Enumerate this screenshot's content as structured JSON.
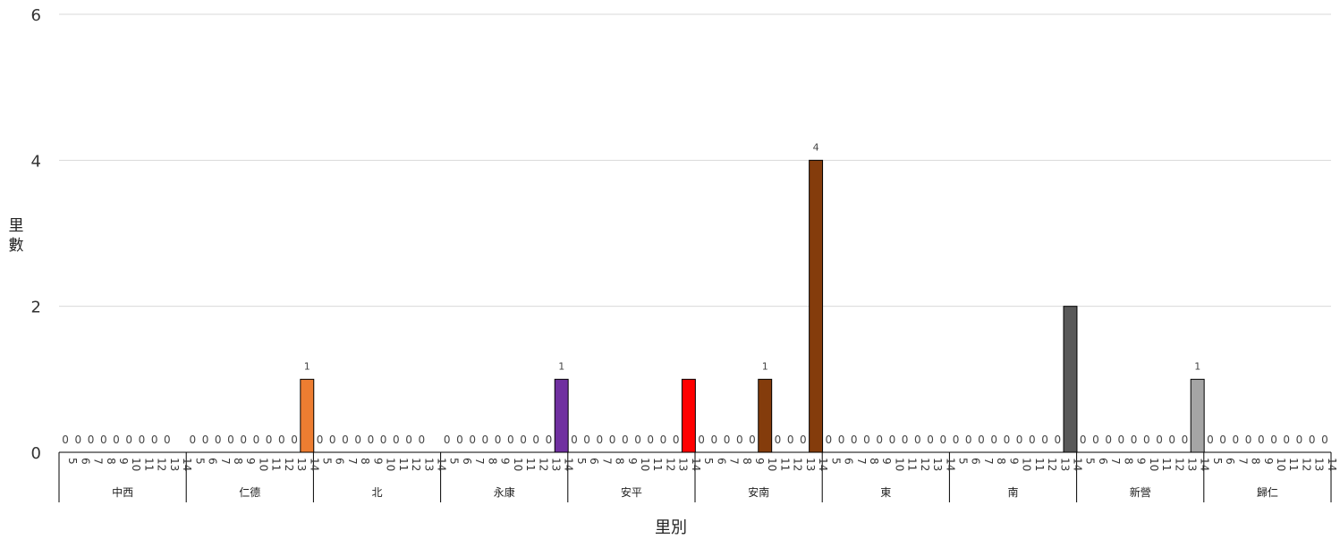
{
  "chart_data": {
    "type": "bar",
    "title": "",
    "xlabel": "里別",
    "ylabel": "里數",
    "ylim": [
      0,
      6
    ],
    "yticks": [
      "0",
      "2",
      "4",
      "6"
    ],
    "grid": true,
    "groups": [
      {
        "name": "中西",
        "categories": [
          "5",
          "6",
          "7",
          "8",
          "9",
          "10",
          "11",
          "12",
          "13",
          "14"
        ],
        "values": [
          0,
          0,
          0,
          0,
          0,
          0,
          0,
          0,
          0,
          null
        ],
        "labels": [
          "0",
          "0",
          "0",
          "0",
          "0",
          "0",
          "0",
          "0",
          "0",
          ""
        ],
        "color": "#ED7D31"
      },
      {
        "name": "仁德",
        "categories": [
          "5",
          "6",
          "7",
          "8",
          "9",
          "10",
          "11",
          "12",
          "13",
          "14"
        ],
        "values": [
          0,
          0,
          0,
          0,
          0,
          0,
          0,
          0,
          0,
          1
        ],
        "labels": [
          "0",
          "0",
          "0",
          "0",
          "0",
          "0",
          "0",
          "0",
          "0",
          "1"
        ],
        "color": "#ED7D31"
      },
      {
        "name": "北",
        "categories": [
          "5",
          "6",
          "7",
          "8",
          "9",
          "10",
          "11",
          "12",
          "13",
          "14"
        ],
        "values": [
          0,
          0,
          0,
          0,
          0,
          0,
          0,
          0,
          0,
          null
        ],
        "labels": [
          "0",
          "0",
          "0",
          "0",
          "0",
          "0",
          "0",
          "0",
          "0",
          ""
        ],
        "color": "#ED7D31"
      },
      {
        "name": "永康",
        "categories": [
          "5",
          "6",
          "7",
          "8",
          "9",
          "10",
          "11",
          "12",
          "13",
          "14"
        ],
        "values": [
          0,
          0,
          0,
          0,
          0,
          0,
          0,
          0,
          0,
          1
        ],
        "labels": [
          "0",
          "0",
          "0",
          "0",
          "0",
          "0",
          "0",
          "0",
          "0",
          "1"
        ],
        "color": "#7030A0"
      },
      {
        "name": "安平",
        "categories": [
          "5",
          "6",
          "7",
          "8",
          "9",
          "10",
          "11",
          "12",
          "13",
          "14"
        ],
        "values": [
          0,
          0,
          0,
          0,
          0,
          0,
          0,
          0,
          0,
          1
        ],
        "labels": [
          "0",
          "0",
          "0",
          "0",
          "0",
          "0",
          "0",
          "0",
          "0",
          ""
        ],
        "color": "#FF0000"
      },
      {
        "name": "安南",
        "categories": [
          "5",
          "6",
          "7",
          "8",
          "9",
          "10",
          "11",
          "12",
          "13",
          "14"
        ],
        "values": [
          0,
          0,
          0,
          0,
          0,
          1,
          0,
          0,
          0,
          4
        ],
        "labels": [
          "0",
          "0",
          "0",
          "0",
          "0",
          "1",
          "0",
          "0",
          "0",
          "4"
        ],
        "color": "#843C0C"
      },
      {
        "name": "東",
        "categories": [
          "5",
          "6",
          "7",
          "8",
          "9",
          "10",
          "11",
          "12",
          "13",
          "14"
        ],
        "values": [
          0,
          0,
          0,
          0,
          0,
          0,
          0,
          0,
          0,
          0
        ],
        "labels": [
          "0",
          "0",
          "0",
          "0",
          "0",
          "0",
          "0",
          "0",
          "0",
          "0"
        ],
        "color": "#ED7D31"
      },
      {
        "name": "南",
        "categories": [
          "5",
          "6",
          "7",
          "8",
          "9",
          "10",
          "11",
          "12",
          "13",
          "14"
        ],
        "values": [
          0,
          0,
          0,
          0,
          0,
          0,
          0,
          0,
          0,
          2
        ],
        "labels": [
          "0",
          "0",
          "0",
          "0",
          "0",
          "0",
          "0",
          "0",
          "0",
          ""
        ],
        "color": "#595959"
      },
      {
        "name": "新營",
        "categories": [
          "5",
          "6",
          "7",
          "8",
          "9",
          "10",
          "11",
          "12",
          "13",
          "14"
        ],
        "values": [
          0,
          0,
          0,
          0,
          0,
          0,
          0,
          0,
          0,
          1
        ],
        "labels": [
          "0",
          "0",
          "0",
          "0",
          "0",
          "0",
          "0",
          "0",
          "0",
          "1"
        ],
        "color": "#A5A5A5"
      },
      {
        "name": "歸仁",
        "categories": [
          "5",
          "6",
          "7",
          "8",
          "9",
          "10",
          "11",
          "12",
          "13",
          "14"
        ],
        "values": [
          0,
          0,
          0,
          0,
          0,
          0,
          0,
          0,
          0,
          0
        ],
        "labels": [
          "0",
          "0",
          "0",
          "0",
          "0",
          "0",
          "0",
          "0",
          "0",
          "0"
        ],
        "color": "#ED7D31"
      }
    ]
  }
}
